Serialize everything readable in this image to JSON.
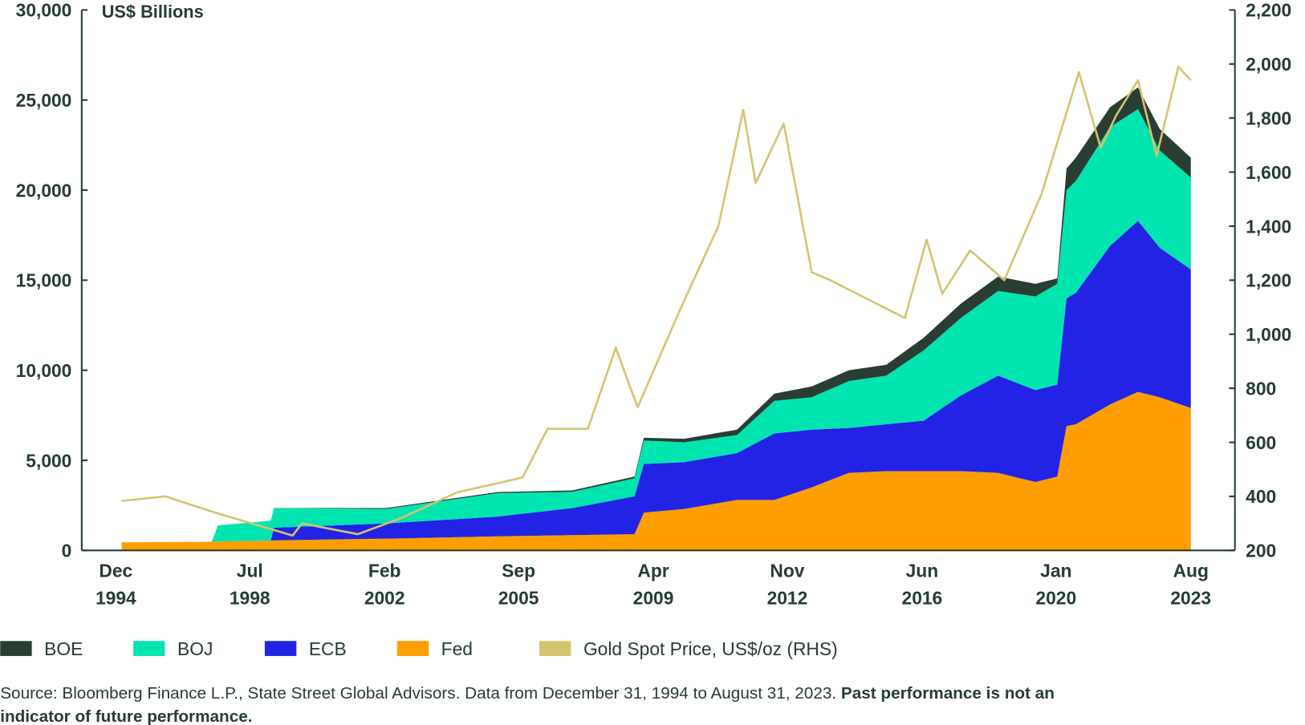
{
  "chart_data": {
    "type": "area",
    "stacked": true,
    "unit_label": "US$ Billions",
    "y_left": {
      "ylim": [
        0,
        30000
      ],
      "ticks": [
        "0",
        "5,000",
        "10,000",
        "15,000",
        "20,000",
        "25,000",
        "30,000"
      ],
      "tick_values": [
        0,
        5000,
        10000,
        15000,
        20000,
        25000,
        30000
      ]
    },
    "y_right": {
      "ylim": [
        200,
        2200
      ],
      "ticks": [
        "200",
        "400",
        "600",
        "800",
        "1,000",
        "1,200",
        "1,400",
        "1,600",
        "1,800",
        "2,000",
        "2,200"
      ],
      "tick_values": [
        200,
        400,
        600,
        800,
        1000,
        1200,
        1400,
        1600,
        1800,
        2000,
        2200
      ]
    },
    "x_ticks": [
      {
        "month": "Dec",
        "year": "1994",
        "date": "1994-12"
      },
      {
        "month": "Jul",
        "year": "1998",
        "date": "1998-07"
      },
      {
        "month": "Feb",
        "year": "2002",
        "date": "2002-02"
      },
      {
        "month": "Sep",
        "year": "2005",
        "date": "2005-09"
      },
      {
        "month": "Apr",
        "year": "2009",
        "date": "2009-04"
      },
      {
        "month": "Nov",
        "year": "2012",
        "date": "2012-11"
      },
      {
        "month": "Jun",
        "year": "2016",
        "date": "2016-06"
      },
      {
        "month": "Jan",
        "year": "2020",
        "date": "2020-01"
      },
      {
        "month": "Aug",
        "year": "2023",
        "date": "2023-08"
      }
    ],
    "dates": [
      "1994-12",
      "1997-05",
      "1997-07",
      "1998-12",
      "1999-01",
      "2002-01",
      "2005-01",
      "2007-01",
      "2008-09",
      "2008-12",
      "2010-01",
      "2011-06",
      "2012-06",
      "2013-06",
      "2014-06",
      "2015-06",
      "2016-06",
      "2017-06",
      "2018-06",
      "2019-06",
      "2020-01",
      "2020-04",
      "2020-07",
      "2021-06",
      "2022-03",
      "2022-10",
      "2023-08"
    ],
    "series": [
      {
        "name": "Fed",
        "color": "#ff9e00",
        "values": [
          450,
          480,
          490,
          550,
          560,
          650,
          780,
          850,
          900,
          2100,
          2300,
          2800,
          2800,
          3500,
          4300,
          4400,
          4400,
          4400,
          4300,
          3800,
          4100,
          6900,
          7000,
          8100,
          8800,
          8500,
          7900
        ]
      },
      {
        "name": "ECB",
        "color": "#2323e6",
        "values": [
          0,
          0,
          0,
          0,
          700,
          850,
          1100,
          1500,
          2100,
          2700,
          2600,
          2600,
          3700,
          3200,
          2500,
          2600,
          2800,
          4200,
          5400,
          5100,
          5100,
          7100,
          7300,
          8800,
          9500,
          8300,
          7700
        ]
      },
      {
        "name": "BOJ",
        "color": "#00e5b0",
        "values": [
          0,
          0,
          900,
          1100,
          1100,
          800,
          1300,
          900,
          1000,
          1300,
          1100,
          1000,
          1800,
          1800,
          2600,
          2700,
          3900,
          4300,
          4700,
          5200,
          5600,
          6000,
          6200,
          6600,
          6200,
          5400,
          5100
        ]
      },
      {
        "name": "BOE",
        "color": "#2a3d33",
        "values": [
          0,
          0,
          0,
          0,
          0,
          50,
          60,
          80,
          100,
          150,
          200,
          300,
          400,
          600,
          600,
          600,
          700,
          800,
          800,
          700,
          300,
          1200,
          1300,
          1100,
          1200,
          1200,
          1100
        ]
      }
    ],
    "line_series": {
      "name": "Gold Spot Price, US$/oz (RHS)",
      "color": "#d4c46f",
      "axis": "right",
      "points": [
        [
          "1994-12",
          383
        ],
        [
          "1996-02",
          400
        ],
        [
          "1997-06",
          340
        ],
        [
          "1999-07",
          255
        ],
        [
          "1999-10",
          300
        ],
        [
          "2001-04",
          260
        ],
        [
          "2002-06",
          320
        ],
        [
          "2003-12",
          415
        ],
        [
          "2005-09",
          470
        ],
        [
          "2006-05",
          650
        ],
        [
          "2007-06",
          650
        ],
        [
          "2008-03",
          950
        ],
        [
          "2008-10",
          730
        ],
        [
          "2009-12",
          1100
        ],
        [
          "2010-12",
          1400
        ],
        [
          "2011-08",
          1830
        ],
        [
          "2011-12",
          1560
        ],
        [
          "2012-09",
          1780
        ],
        [
          "2013-06",
          1230
        ],
        [
          "2013-12",
          1200
        ],
        [
          "2015-12",
          1060
        ],
        [
          "2016-07",
          1350
        ],
        [
          "2016-12",
          1150
        ],
        [
          "2017-09",
          1310
        ],
        [
          "2018-08",
          1200
        ],
        [
          "2019-08",
          1520
        ],
        [
          "2020-08",
          1970
        ],
        [
          "2021-03",
          1690
        ],
        [
          "2021-08",
          1810
        ],
        [
          "2022-03",
          1940
        ],
        [
          "2022-09",
          1660
        ],
        [
          "2023-04",
          1990
        ],
        [
          "2023-08",
          1940
        ]
      ]
    },
    "legend": {
      "placement": "bottom",
      "entries": [
        "BOE",
        "BOJ",
        "ECB",
        "Fed",
        "Gold Spot Price, US$/oz (RHS)"
      ]
    },
    "grid": false
  },
  "source": {
    "text": "Source: Bloomberg Finance L.P., State Street Global Advisors. Data from December 31, 1994 to August 31, 2023. ",
    "bold_1": "Past performance is not an",
    "bold_2": "indicator of future performance."
  }
}
